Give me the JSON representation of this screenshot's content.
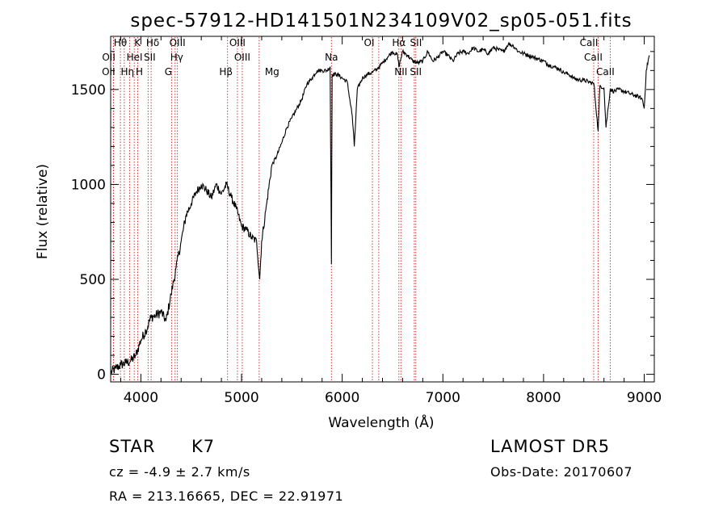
{
  "chart_data": {
    "type": "line",
    "title": "spec-57912-HD141501N234109V02_sp05-051.fits",
    "xlabel": "Wavelength (Å)",
    "ylabel": "Flux (relative)",
    "xlim": [
      3700,
      9100
    ],
    "ylim": [
      -40,
      1780
    ],
    "x_ticks": [
      4000,
      5000,
      6000,
      7000,
      8000,
      9000
    ],
    "y_ticks": [
      0,
      500,
      1000,
      1500
    ],
    "grid": false,
    "series": [
      {
        "color": "#000000",
        "x": [
          3700,
          3750,
          3800,
          3850,
          3900,
          3950,
          4000,
          4050,
          4100,
          4150,
          4200,
          4250,
          4300,
          4350,
          4400,
          4450,
          4500,
          4550,
          4600,
          4650,
          4700,
          4750,
          4800,
          4850,
          4900,
          4950,
          5000,
          5050,
          5100,
          5150,
          5180,
          5200,
          5250,
          5300,
          5350,
          5400,
          5450,
          5500,
          5550,
          5600,
          5650,
          5700,
          5750,
          5800,
          5850,
          5880,
          5893,
          5900,
          5950,
          6000,
          6050,
          6100,
          6120,
          6150,
          6200,
          6250,
          6300,
          6350,
          6400,
          6450,
          6500,
          6550,
          6563,
          6600,
          6650,
          6700,
          6750,
          6800,
          6850,
          6900,
          6950,
          7000,
          7050,
          7100,
          7150,
          7200,
          7250,
          7300,
          7350,
          7400,
          7450,
          7500,
          7550,
          7600,
          7650,
          7700,
          7750,
          7800,
          7850,
          7900,
          7950,
          8000,
          8050,
          8100,
          8150,
          8200,
          8250,
          8300,
          8350,
          8400,
          8450,
          8500,
          8542,
          8560,
          8600,
          8620,
          8662,
          8700,
          8750,
          8800,
          8850,
          8900,
          8950,
          8980,
          9000,
          9020,
          9050
        ],
        "values": [
          10,
          30,
          50,
          60,
          70,
          100,
          180,
          230,
          300,
          310,
          330,
          280,
          420,
          560,
          700,
          840,
          900,
          960,
          1000,
          970,
          930,
          1000,
          950,
          1000,
          930,
          870,
          780,
          760,
          720,
          700,
          500,
          700,
          900,
          1100,
          1150,
          1220,
          1300,
          1350,
          1400,
          1450,
          1530,
          1560,
          1600,
          1600,
          1600,
          1620,
          580,
          1580,
          1580,
          1560,
          1540,
          1360,
          1200,
          1500,
          1560,
          1580,
          1590,
          1610,
          1640,
          1670,
          1700,
          1680,
          1620,
          1700,
          1680,
          1650,
          1640,
          1650,
          1700,
          1650,
          1670,
          1700,
          1680,
          1650,
          1690,
          1700,
          1690,
          1720,
          1700,
          1710,
          1690,
          1720,
          1710,
          1700,
          1740,
          1730,
          1700,
          1690,
          1680,
          1670,
          1660,
          1650,
          1630,
          1620,
          1610,
          1590,
          1580,
          1560,
          1550,
          1550,
          1540,
          1530,
          1280,
          1520,
          1510,
          1300,
          1500,
          1490,
          1500,
          1490,
          1480,
          1470,
          1460,
          1450,
          1400,
          1600,
          1680
        ]
      }
    ],
    "lines": [
      {
        "label": "Hθ",
        "wavelength": 3797
      },
      {
        "label": "OII",
        "wavelength": 3727
      },
      {
        "label": "OII",
        "wavelength": 3729
      },
      {
        "label": "Hη",
        "wavelength": 3835
      },
      {
        "label": "K",
        "wavelength": 3934
      },
      {
        "label": "HeI",
        "wavelength": 3889
      },
      {
        "label": "H",
        "wavelength": 3969
      },
      {
        "label": "Hδ",
        "wavelength": 4102
      },
      {
        "label": "SII",
        "wavelength": 4072
      },
      {
        "label": "OIII",
        "wavelength": 4363
      },
      {
        "label": "Hγ",
        "wavelength": 4340
      },
      {
        "label": "G",
        "wavelength": 4305
      },
      {
        "label": "OIII",
        "wavelength": 5007
      },
      {
        "label": "OIII",
        "wavelength": 4959
      },
      {
        "label": "Hβ",
        "wavelength": 4861
      },
      {
        "label": "Mg",
        "wavelength": 5175
      },
      {
        "label": "Na",
        "wavelength": 5893
      },
      {
        "label": "OI",
        "wavelength": 6300
      },
      {
        "label": "OI",
        "wavelength": 6363
      },
      {
        "label": "Hα",
        "wavelength": 6563
      },
      {
        "label": "NII",
        "wavelength": 6583
      },
      {
        "label": "SII",
        "wavelength": 6716
      },
      {
        "label": "SII",
        "wavelength": 6731
      },
      {
        "label": "CaII",
        "wavelength": 8498
      },
      {
        "label": "CaII",
        "wavelength": 8542
      },
      {
        "label": "CaII",
        "wavelength": 8662
      }
    ]
  },
  "info": {
    "object_type": "STAR",
    "subclass": "K7",
    "survey": "LAMOST DR5",
    "velocity": "cz = -4.9 ± 2.7 km/s",
    "obs_date": "Obs-Date: 20170607",
    "coords": "RA = 213.16665, DEC =  22.91971"
  }
}
